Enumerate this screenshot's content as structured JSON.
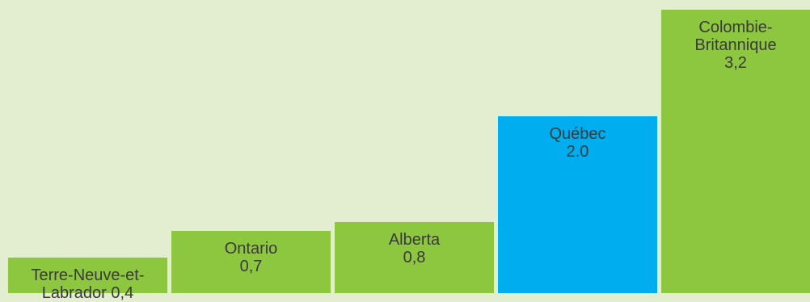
{
  "colors": {
    "background": "#e3edcf",
    "bar_default": "#8dc63f",
    "bar_highlight": "#00aeef",
    "label_text": "#3a3a3a"
  },
  "chart_data": {
    "type": "bar",
    "title": "",
    "xlabel": "",
    "ylabel": "",
    "grid": false,
    "legend": "none",
    "ylim": [
      0,
      3.4
    ],
    "bars": [
      {
        "category": "Terre-Neuve-et-\nLabrador",
        "value": 0.4,
        "value_label": "0,4",
        "label_text": "Terre-Neuve-et-\nLabrador  0,4",
        "highlight": false
      },
      {
        "category": "Ontario",
        "value": 0.7,
        "value_label": "0,7",
        "label_text": "Ontario\n0,7",
        "highlight": false
      },
      {
        "category": "Alberta",
        "value": 0.8,
        "value_label": "0,8",
        "label_text": "Alberta\n0,8",
        "highlight": false
      },
      {
        "category": "Québec",
        "value": 2.0,
        "value_label": "2.0",
        "label_text": "Québec\n2.0",
        "highlight": true
      },
      {
        "category": "Colombie-\nBritannique",
        "value": 3.2,
        "value_label": "3,2",
        "label_text": "Colombie-\nBritannique\n3,2",
        "highlight": false
      }
    ]
  }
}
